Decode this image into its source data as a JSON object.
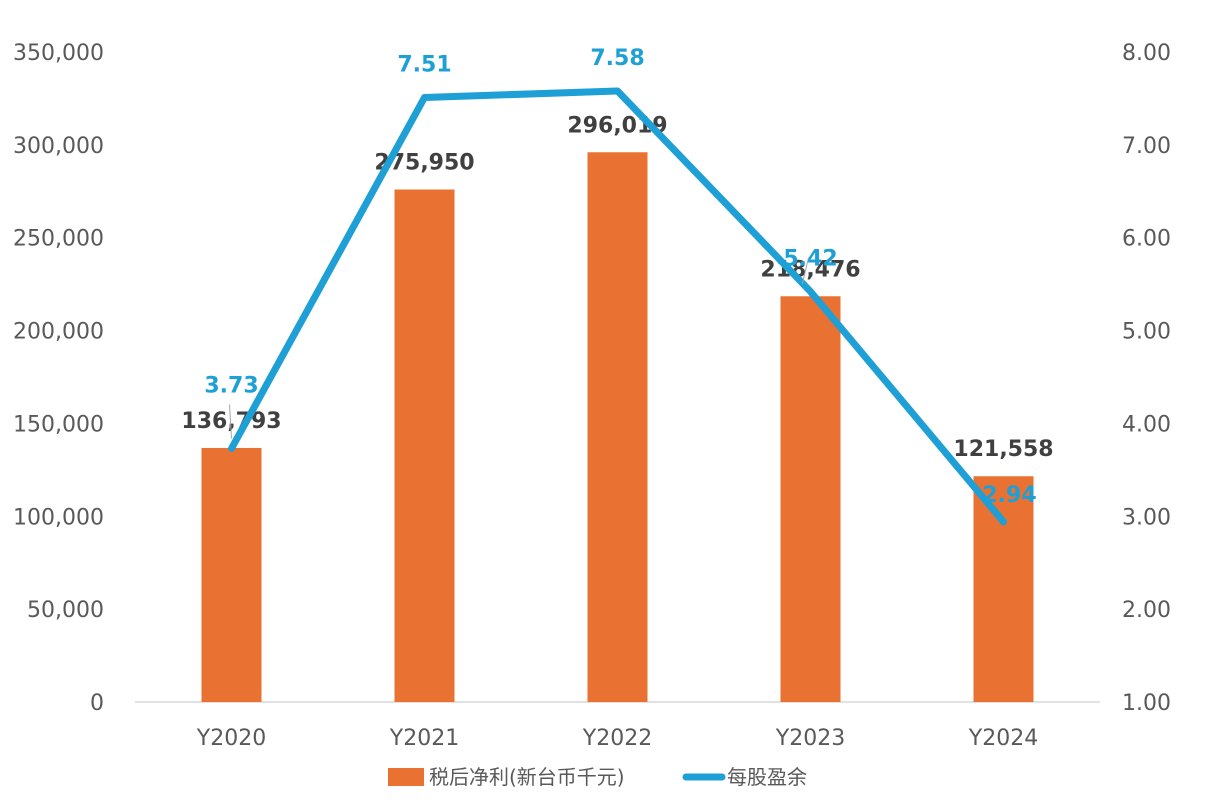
{
  "chart_data": {
    "type": "bar",
    "categories": [
      "Y2020",
      "Y2021",
      "Y2022",
      "Y2023",
      "Y2024"
    ],
    "series": [
      {
        "name": "税后净利(新台币千元)",
        "type": "bar",
        "axis": "left",
        "values": [
          136793,
          275950,
          296019,
          218476,
          121558
        ],
        "labels": [
          "136,793",
          "275,950",
          "296,019",
          "218,476",
          "121,558"
        ],
        "color": "#e97132"
      },
      {
        "name": "每股盈余",
        "type": "line",
        "axis": "right",
        "values": [
          3.73,
          7.51,
          7.58,
          5.42,
          2.94
        ],
        "labels": [
          "3.73",
          "7.51",
          "7.58",
          "5.42",
          "2.94"
        ],
        "color": "#1ea0d6"
      }
    ],
    "left_axis": {
      "ylim": [
        0,
        350000
      ],
      "ticks": [
        "0",
        "50,000",
        "100,000",
        "150,000",
        "200,000",
        "250,000",
        "300,000",
        "350,000"
      ]
    },
    "right_axis": {
      "ylim": [
        1,
        8
      ],
      "ticks": [
        "1.00",
        "2.00",
        "3.00",
        "4.00",
        "5.00",
        "6.00",
        "7.00",
        "8.00"
      ]
    },
    "grid": false,
    "legend": "bottom"
  }
}
